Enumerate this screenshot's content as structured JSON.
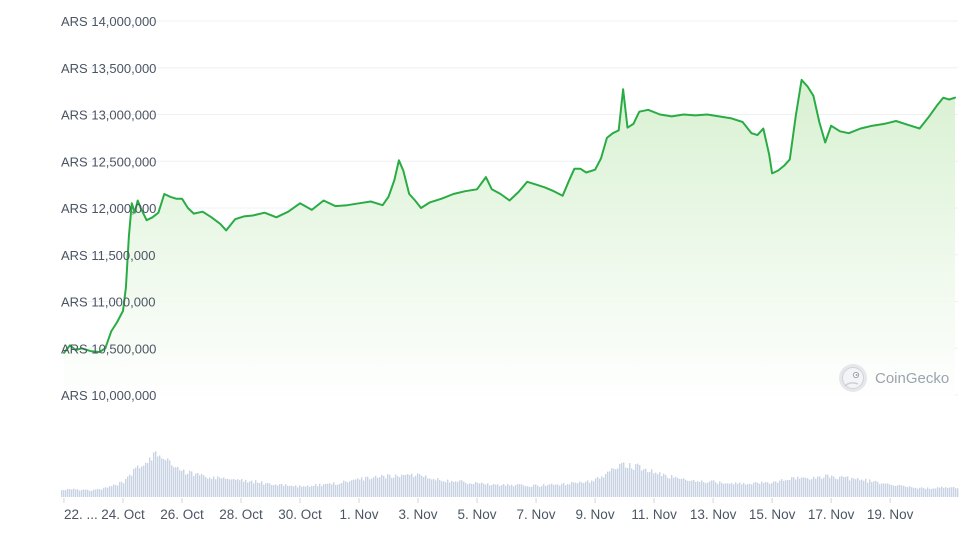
{
  "chart_data": {
    "type": "line",
    "title": "",
    "currency_prefix": "ARS",
    "y_ticks": [
      "ARS 14,000,000",
      "ARS 13,500,000",
      "ARS 13,000,000",
      "ARS 12,500,000",
      "ARS 12,000,000",
      "ARS 11,500,000",
      "ARS 11,000,000",
      "ARS 10,500,000",
      "ARS 10,000,000"
    ],
    "y_tick_values": [
      14000000,
      13500000,
      13000000,
      12500000,
      12000000,
      11500000,
      11000000,
      10500000,
      10000000
    ],
    "ylim": [
      10000000,
      14000000
    ],
    "x_ticks": [
      "22. ...",
      "24. Oct",
      "26. Oct",
      "28. Oct",
      "30. Oct",
      "1. Nov",
      "3. Nov",
      "5. Nov",
      "7. Nov",
      "9. Nov",
      "11. Nov",
      "13. Nov",
      "15. Nov",
      "17. Nov",
      "19. Nov"
    ],
    "x_tick_days": [
      0,
      2,
      4,
      6,
      8,
      10,
      12,
      14,
      16,
      18,
      20,
      22,
      24,
      26,
      28
    ],
    "x_start_date": "2023-10-22",
    "xlim_days": [
      -0.1,
      30.3
    ],
    "series": [
      {
        "name": "",
        "points": [
          [
            0.0,
            10450000
          ],
          [
            0.2,
            10530000
          ],
          [
            0.4,
            10480000
          ],
          [
            0.6,
            10500000
          ],
          [
            0.9,
            10470000
          ],
          [
            1.2,
            10460000
          ],
          [
            1.4,
            10500000
          ],
          [
            1.6,
            10680000
          ],
          [
            1.8,
            10780000
          ],
          [
            2.0,
            10900000
          ],
          [
            2.1,
            11150000
          ],
          [
            2.2,
            11700000
          ],
          [
            2.3,
            12050000
          ],
          [
            2.4,
            11950000
          ],
          [
            2.5,
            12080000
          ],
          [
            2.6,
            12000000
          ],
          [
            2.8,
            11870000
          ],
          [
            3.0,
            11900000
          ],
          [
            3.2,
            11950000
          ],
          [
            3.4,
            12150000
          ],
          [
            3.6,
            12120000
          ],
          [
            3.8,
            12100000
          ],
          [
            4.0,
            12100000
          ],
          [
            4.2,
            12000000
          ],
          [
            4.4,
            11940000
          ],
          [
            4.7,
            11960000
          ],
          [
            5.0,
            11900000
          ],
          [
            5.3,
            11830000
          ],
          [
            5.5,
            11760000
          ],
          [
            5.8,
            11880000
          ],
          [
            6.1,
            11910000
          ],
          [
            6.4,
            11920000
          ],
          [
            6.8,
            11950000
          ],
          [
            7.2,
            11900000
          ],
          [
            7.6,
            11960000
          ],
          [
            8.0,
            12050000
          ],
          [
            8.4,
            11980000
          ],
          [
            8.8,
            12080000
          ],
          [
            9.2,
            12020000
          ],
          [
            9.6,
            12030000
          ],
          [
            10.0,
            12050000
          ],
          [
            10.4,
            12070000
          ],
          [
            10.8,
            12030000
          ],
          [
            11.0,
            12120000
          ],
          [
            11.2,
            12300000
          ],
          [
            11.35,
            12510000
          ],
          [
            11.5,
            12400000
          ],
          [
            11.7,
            12150000
          ],
          [
            11.9,
            12080000
          ],
          [
            12.1,
            12000000
          ],
          [
            12.4,
            12060000
          ],
          [
            12.8,
            12100000
          ],
          [
            13.2,
            12150000
          ],
          [
            13.6,
            12180000
          ],
          [
            14.0,
            12200000
          ],
          [
            14.3,
            12330000
          ],
          [
            14.5,
            12200000
          ],
          [
            14.8,
            12150000
          ],
          [
            15.1,
            12080000
          ],
          [
            15.4,
            12170000
          ],
          [
            15.7,
            12280000
          ],
          [
            16.0,
            12250000
          ],
          [
            16.3,
            12220000
          ],
          [
            16.6,
            12180000
          ],
          [
            16.9,
            12130000
          ],
          [
            17.1,
            12280000
          ],
          [
            17.3,
            12420000
          ],
          [
            17.5,
            12420000
          ],
          [
            17.7,
            12380000
          ],
          [
            18.0,
            12410000
          ],
          [
            18.2,
            12530000
          ],
          [
            18.4,
            12750000
          ],
          [
            18.6,
            12800000
          ],
          [
            18.8,
            12830000
          ],
          [
            18.95,
            13270000
          ],
          [
            19.1,
            12860000
          ],
          [
            19.3,
            12900000
          ],
          [
            19.5,
            13030000
          ],
          [
            19.8,
            13050000
          ],
          [
            20.2,
            13000000
          ],
          [
            20.6,
            12980000
          ],
          [
            21.0,
            13000000
          ],
          [
            21.4,
            12990000
          ],
          [
            21.8,
            13000000
          ],
          [
            22.2,
            12980000
          ],
          [
            22.6,
            12960000
          ],
          [
            23.0,
            12920000
          ],
          [
            23.3,
            12800000
          ],
          [
            23.5,
            12780000
          ],
          [
            23.7,
            12850000
          ],
          [
            23.9,
            12570000
          ],
          [
            24.0,
            12370000
          ],
          [
            24.2,
            12400000
          ],
          [
            24.4,
            12450000
          ],
          [
            24.6,
            12520000
          ],
          [
            24.8,
            12980000
          ],
          [
            25.0,
            13370000
          ],
          [
            25.2,
            13300000
          ],
          [
            25.4,
            13200000
          ],
          [
            25.6,
            12920000
          ],
          [
            25.8,
            12700000
          ],
          [
            26.0,
            12880000
          ],
          [
            26.3,
            12820000
          ],
          [
            26.6,
            12800000
          ],
          [
            27.0,
            12850000
          ],
          [
            27.4,
            12880000
          ],
          [
            27.8,
            12900000
          ],
          [
            28.2,
            12930000
          ],
          [
            28.6,
            12890000
          ],
          [
            29.0,
            12850000
          ],
          [
            29.3,
            12970000
          ],
          [
            29.6,
            13100000
          ],
          [
            29.8,
            13180000
          ],
          [
            30.0,
            13160000
          ],
          [
            30.2,
            13180000
          ]
        ]
      }
    ],
    "volume": {
      "days": [
        0,
        1,
        1.5,
        2,
        2.5,
        3,
        3.5,
        4,
        5,
        6,
        7,
        8,
        9,
        10,
        11,
        12,
        13,
        14,
        15,
        16,
        17,
        18,
        18.5,
        19,
        19.5,
        20,
        21,
        22,
        23,
        24,
        25,
        26,
        27,
        28,
        29,
        30
      ],
      "values": [
        18,
        16,
        22,
        35,
        70,
        100,
        85,
        60,
        45,
        40,
        30,
        25,
        30,
        42,
        48,
        52,
        38,
        32,
        28,
        26,
        30,
        40,
        60,
        75,
        70,
        55,
        40,
        35,
        30,
        35,
        45,
        48,
        40,
        28,
        20,
        22
      ]
    },
    "grid": true,
    "watermark": "CoinGecko",
    "colors": {
      "line": "#2aac45",
      "fill_top": "#d6f0cf",
      "fill_bottom": "#ffffff",
      "volume": "#c9d3e3",
      "grid": "#eef0f3",
      "tick_text": "#4b5563",
      "watermark": "#9ca3af"
    }
  }
}
